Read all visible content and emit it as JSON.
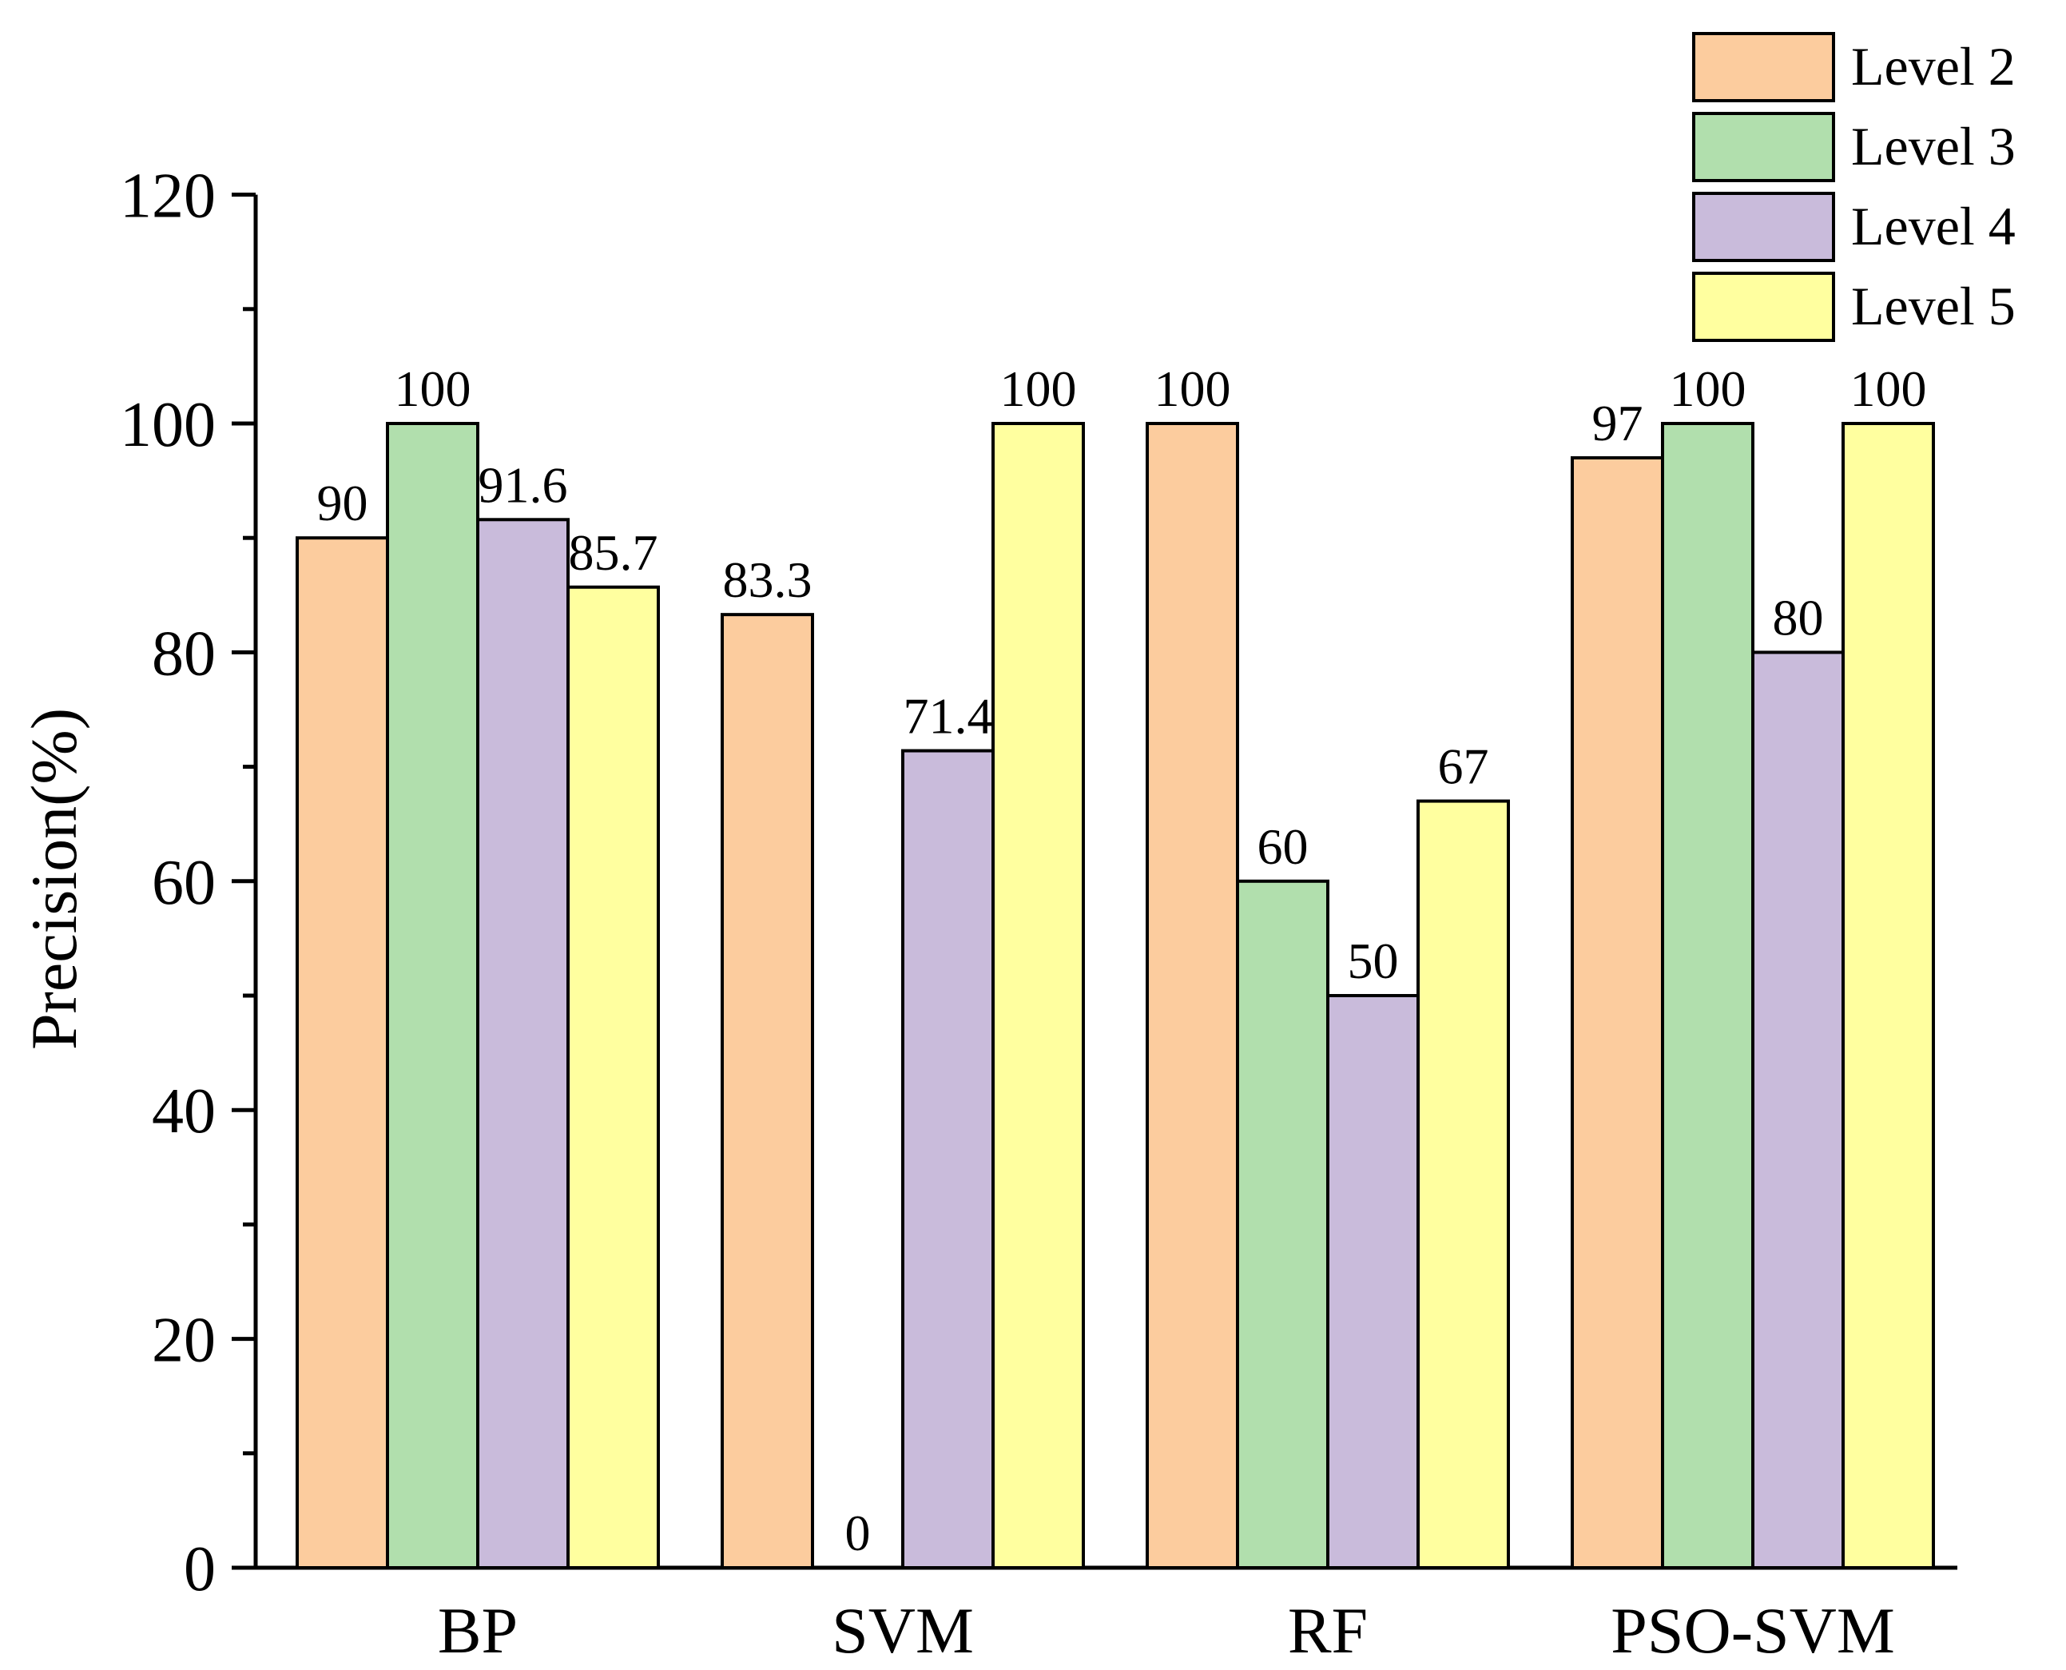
{
  "chart_data": {
    "type": "bar",
    "title": "",
    "xlabel": "",
    "ylabel": "Precision(%)",
    "ylim": [
      0,
      120
    ],
    "yticks": [
      0,
      20,
      40,
      60,
      80,
      100,
      120
    ],
    "categories": [
      "BP",
      "SVM",
      "RF",
      "PSO-SVM"
    ],
    "series": [
      {
        "name": "Level 2",
        "color": "#FCCC9E",
        "values": [
          90,
          83.3,
          100,
          97
        ],
        "labels": [
          "90",
          "83.3",
          "100",
          "97"
        ]
      },
      {
        "name": "Level 3",
        "color": "#B1DFAD",
        "values": [
          100,
          0,
          60,
          100
        ],
        "labels": [
          "100",
          "0",
          "60",
          "100"
        ]
      },
      {
        "name": "Level 4",
        "color": "#C9BBDB",
        "values": [
          91.6,
          71.4,
          50,
          80
        ],
        "labels": [
          "91.6",
          "71.4",
          "50",
          "80"
        ]
      },
      {
        "name": "Level 5",
        "color": "#FFFF9F",
        "values": [
          85.7,
          100,
          67,
          100
        ],
        "labels": [
          "85.7",
          "100",
          "67",
          "100"
        ]
      }
    ],
    "legend_position": "top-right",
    "grid": false
  }
}
